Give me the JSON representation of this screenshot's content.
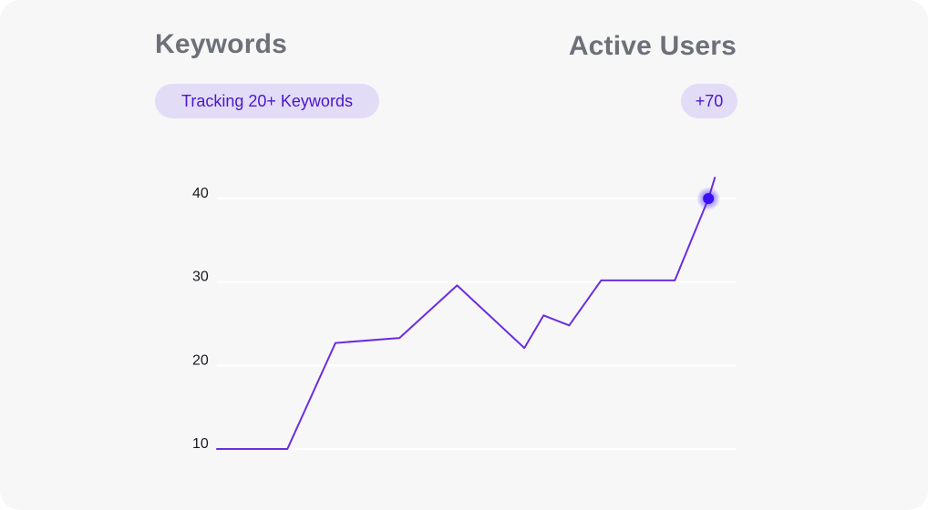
{
  "header": {
    "left_title": "Keywords",
    "right_title": "Active Users",
    "left_badge": "Tracking 20+ Keywords",
    "right_badge": "+70"
  },
  "colors": {
    "line": "#6a2de0",
    "highlight": "#3b10f5",
    "badge_bg": "#e3dcf7",
    "badge_text": "#4a17c9",
    "title_text": "#6e7079",
    "card_bg": "#f7f7f8",
    "gridline": "#ffffff"
  },
  "chart_data": {
    "type": "line",
    "xlim": [
      0,
      16
    ],
    "ylim": [
      10,
      40
    ],
    "yticks": [
      10,
      20,
      30,
      40
    ],
    "grid": true,
    "x": [
      0,
      2.2,
      3.7,
      5.7,
      7.5,
      9.6,
      10.2,
      11.0,
      12.0,
      14.3,
      15.35
    ],
    "y": [
      10.0,
      10.0,
      22.7,
      23.3,
      29.6,
      22.1,
      26.0,
      24.8,
      30.2,
      30.2,
      40.0
    ],
    "end_point": {
      "x": 15.35,
      "y": 40.0
    },
    "line_end": {
      "x": 15.55,
      "y": 42.5
    }
  }
}
